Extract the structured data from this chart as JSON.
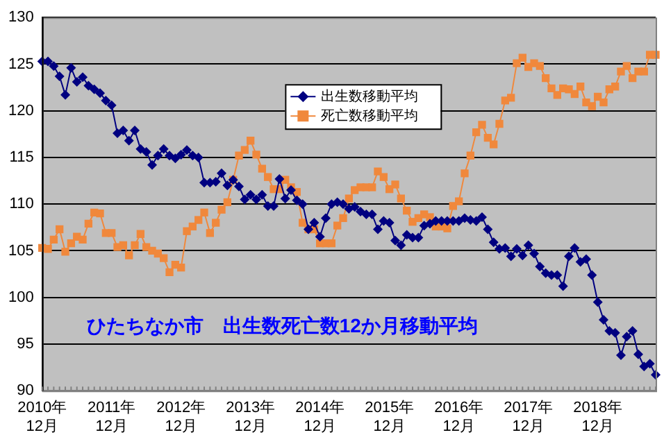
{
  "chart_data": {
    "type": "line",
    "categories": [
      "2010年\n12月",
      null,
      null,
      null,
      null,
      null,
      null,
      null,
      null,
      null,
      null,
      null,
      "2011年\n12月",
      null,
      null,
      null,
      null,
      null,
      null,
      null,
      null,
      null,
      null,
      null,
      "2012年\n12月",
      null,
      null,
      null,
      null,
      null,
      null,
      null,
      null,
      null,
      null,
      null,
      "2013年\n12月",
      null,
      null,
      null,
      null,
      null,
      null,
      null,
      null,
      null,
      null,
      null,
      "2014年\n12月",
      null,
      null,
      null,
      null,
      null,
      null,
      null,
      null,
      null,
      null,
      null,
      "2015年\n12月",
      null,
      null,
      null,
      null,
      null,
      null,
      null,
      null,
      null,
      null,
      null,
      "2016年\n12月",
      null,
      null,
      null,
      null,
      null,
      null,
      null,
      null,
      null,
      null,
      null,
      "2017年\n12月",
      null,
      null,
      null,
      null,
      null,
      null,
      null,
      null,
      null,
      null,
      null,
      "2018年\n12月",
      null,
      null,
      null,
      null,
      null,
      null,
      null,
      null,
      null,
      null
    ],
    "series": [
      {
        "name": "出生数移動平均",
        "color": "#000080",
        "marker": "diamond",
        "values": [
          125.3,
          125.3,
          124.8,
          123.7,
          121.7,
          124.6,
          123.1,
          123.6,
          122.7,
          122.3,
          121.9,
          121.1,
          120.6,
          117.6,
          117.9,
          116.8,
          117.9,
          115.9,
          115.6,
          114.2,
          115.2,
          115.9,
          115.2,
          114.9,
          115.3,
          115.8,
          115.2,
          115.0,
          112.3,
          112.3,
          112.4,
          113.3,
          112.0,
          112.6,
          111.9,
          110.5,
          111.0,
          110.5,
          111.0,
          109.8,
          109.8,
          112.7,
          110.6,
          111.5,
          110.4,
          110.0,
          107.3,
          108.0,
          106.5,
          108.5,
          110.0,
          110.2,
          110.0,
          109.5,
          109.7,
          109.2,
          108.9,
          108.9,
          107.3,
          108.2,
          108.0,
          106.1,
          105.6,
          106.7,
          106.4,
          106.4,
          107.7,
          107.9,
          108.2,
          108.2,
          108.2,
          108.2,
          108.2,
          108.5,
          108.3,
          108.2,
          108.6,
          107.3,
          105.9,
          105.2,
          105.3,
          104.4,
          105.2,
          104.5,
          105.6,
          104.7,
          103.3,
          102.6,
          102.4,
          102.4,
          101.2,
          104.4,
          105.3,
          103.8,
          104.1,
          102.4,
          99.5,
          97.6,
          96.4,
          96.2,
          93.8,
          95.8,
          96.4,
          93.9,
          92.6,
          92.9,
          91.7
        ]
      },
      {
        "name": "死亡数移動平均",
        "color": "#f0883c",
        "marker": "square",
        "values": [
          105.3,
          105.2,
          106.2,
          107.3,
          104.9,
          105.8,
          106.5,
          106.2,
          107.9,
          109.1,
          109.0,
          106.9,
          106.9,
          105.4,
          105.6,
          104.5,
          105.6,
          106.8,
          105.4,
          105.0,
          104.7,
          104.2,
          102.7,
          103.5,
          103.2,
          107.1,
          107.6,
          108.3,
          109.1,
          106.9,
          108.0,
          109.4,
          110.2,
          112.6,
          115.2,
          115.8,
          116.8,
          115.3,
          113.8,
          112.9,
          111.6,
          111.6,
          112.6,
          111.8,
          111.3,
          108.0,
          107.3,
          107.3,
          105.8,
          105.8,
          105.8,
          107.7,
          108.5,
          110.6,
          111.5,
          111.8,
          111.8,
          111.8,
          113.5,
          112.9,
          111.6,
          112.1,
          110.6,
          109.3,
          108.1,
          108.5,
          108.9,
          108.6,
          107.6,
          107.6,
          107.4,
          109.8,
          110.3,
          113.3,
          115.2,
          117.7,
          118.5,
          117.1,
          116.4,
          118.6,
          121.1,
          121.4,
          125.1,
          125.7,
          124.7,
          125.1,
          124.8,
          123.5,
          122.4,
          121.7,
          122.4,
          122.3,
          121.8,
          122.6,
          120.9,
          120.5,
          121.5,
          120.9,
          122.3,
          122.6,
          124.2,
          124.8,
          123.5,
          124.2,
          124.2,
          126.0,
          126.0
        ]
      }
    ],
    "ylim": [
      90,
      130
    ],
    "yticks": [
      90,
      95,
      100,
      105,
      110,
      115,
      120,
      125,
      130
    ],
    "grid": "y",
    "legend": "top",
    "annotations": [
      "ひたちなか市　出生数死亡数12か月移動平均"
    ]
  }
}
